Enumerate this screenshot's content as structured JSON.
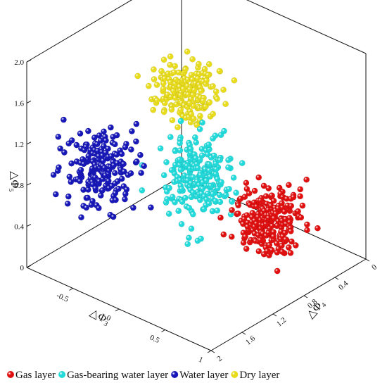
{
  "chart_data": {
    "type": "scatter",
    "subtype": "3d-scatter",
    "axes": {
      "x": {
        "label": "△Φ₃",
        "range": [
          -1,
          1
        ],
        "ticks": [
          -0.5,
          0,
          0.5,
          1
        ],
        "tick_labels": [
          "-0.5",
          "0",
          "0.5",
          "1"
        ]
      },
      "y": {
        "label": "△Φ₄",
        "range": [
          0,
          2
        ],
        "ticks": [
          0,
          0.4,
          0.8,
          1.2,
          1.6,
          2
        ],
        "tick_labels": [
          "0",
          "0.4",
          "0.8",
          "1.2",
          "1.6",
          "2"
        ]
      },
      "z": {
        "label": "△Φ₅",
        "range": [
          0,
          2
        ],
        "ticks": [
          0,
          0.4,
          0.8,
          1.2,
          1.6,
          2.0
        ],
        "tick_labels": [
          "0",
          "0.4",
          "0.8",
          "1.2",
          "1.6",
          "2.0"
        ]
      }
    },
    "grid": false,
    "legend_position": "bottom",
    "series": [
      {
        "name": "Gas layer",
        "color": "#e01010",
        "center": [
          0.55,
          0.7,
          0.5
        ],
        "spread": [
          0.15,
          0.16,
          0.14
        ],
        "count": 240
      },
      {
        "name": "Gas-bearing water layer",
        "color": "#22dada",
        "center": [
          0.0,
          1.0,
          0.85
        ],
        "spread": [
          0.14,
          0.15,
          0.18
        ],
        "count": 220
      },
      {
        "name": "Water layer",
        "color": "#1818b8",
        "center": [
          -0.7,
          1.4,
          0.8
        ],
        "spread": [
          0.14,
          0.17,
          0.16
        ],
        "count": 200
      },
      {
        "name": "Dry layer",
        "color": "#e8dc1c",
        "center": [
          -0.05,
          1.05,
          1.7
        ],
        "spread": [
          0.16,
          0.16,
          0.12
        ],
        "count": 180
      }
    ]
  }
}
